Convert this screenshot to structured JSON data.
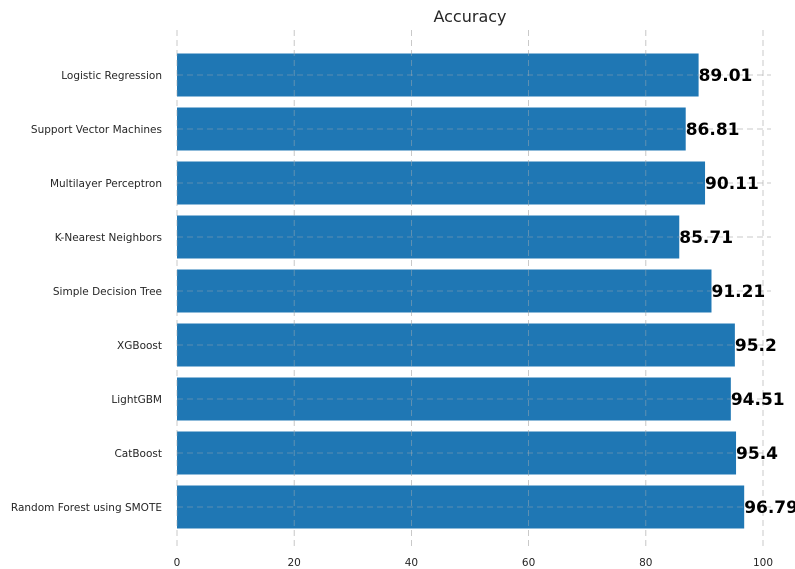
{
  "chart_data": {
    "type": "bar",
    "orientation": "horizontal",
    "title": "Accuracy",
    "xlabel": "",
    "ylabel": "",
    "categories": [
      "Logistic Regression",
      "Support Vector Machines",
      "Multilayer Perceptron",
      "K-Nearest Neighbors",
      "Simple Decision Tree",
      "XGBoost",
      "LightGBM",
      "CatBoost",
      "Random Forest using SMOTE"
    ],
    "values": [
      89.01,
      86.81,
      90.11,
      85.71,
      91.21,
      95.2,
      94.51,
      95.4,
      96.79
    ],
    "data_labels": [
      "89.01",
      "86.81",
      "90.11",
      "85.71",
      "91.21",
      "95.2",
      "94.51",
      "95.4",
      "96.79"
    ],
    "xlim": [
      0,
      100
    ],
    "xticks": [
      0,
      20,
      40,
      60,
      80,
      100
    ],
    "xtick_labels": [
      "0",
      "20",
      "40",
      "60",
      "80",
      "100"
    ],
    "grid": true,
    "bar_color": "#1f77b4"
  }
}
